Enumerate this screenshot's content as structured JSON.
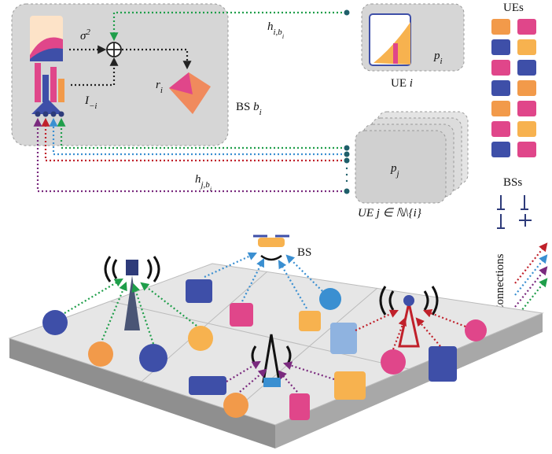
{
  "bs_block": {
    "sigma": {
      "base": "σ",
      "sup": "2"
    },
    "interference": {
      "base": "I",
      "sub": "−i"
    },
    "rate": {
      "base": "r",
      "sub": "i"
    },
    "label": {
      "text": "BS ",
      "base": "b",
      "sub": "i"
    }
  },
  "link_i": {
    "base": "h",
    "sub": "i,b",
    "subsub": "i"
  },
  "ue_i": {
    "power": {
      "base": "p",
      "sub": "i"
    },
    "label": {
      "text": "UE ",
      "var": "i"
    }
  },
  "link_j": {
    "base": "h",
    "sub": "j,b",
    "subsub": "i"
  },
  "ue_j": {
    "power": {
      "base": "p",
      "sub": "j"
    },
    "label": "UE j ∈ ℕ\\{i}"
  },
  "legend": {
    "ues": "UEs",
    "bss": "BSs",
    "connections": "Connections"
  },
  "scene": {
    "bs_label": "BS"
  }
}
